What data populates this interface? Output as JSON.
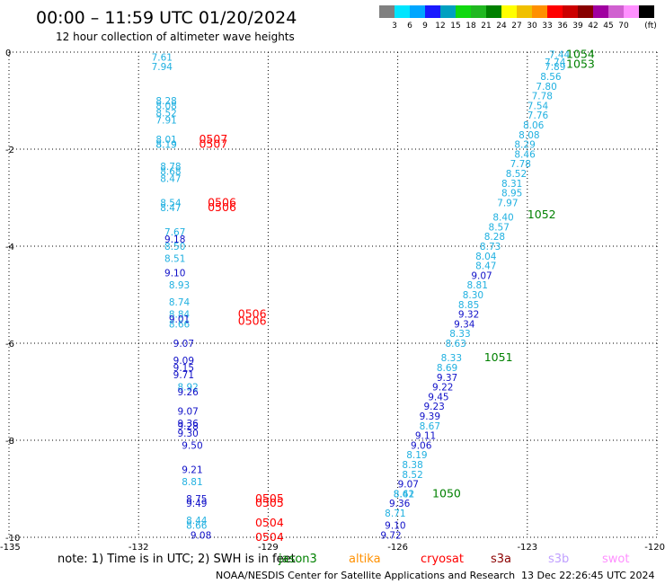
{
  "header": {
    "title": "00:00 – 11:59 UTC 01/20/2024",
    "subtitle": "12 hour collection of altimeter wave heights"
  },
  "color_scale": {
    "labels": [
      "3",
      "6",
      "9",
      "12",
      "15",
      "18",
      "21",
      "24",
      "27",
      "30",
      "33",
      "36",
      "39",
      "42",
      "45",
      "70"
    ],
    "unit": "(ft)",
    "colors": [
      "#808080",
      "#00e5ff",
      "#00a6ff",
      "#1a1aff",
      "#00a0c0",
      "#10d810",
      "#20b820",
      "#008000",
      "#ffff00",
      "#f0c000",
      "#ff9000",
      "#ff0000",
      "#cc0000",
      "#880000",
      "#a000a0",
      "#d060d0",
      "#ff90ff",
      "#000000"
    ]
  },
  "chart_data": {
    "type": "scatter",
    "xlim": [
      -135,
      -120
    ],
    "ylim": [
      -10,
      0
    ],
    "xticks": [
      "-135",
      "-132",
      "-129",
      "-126",
      "-123",
      "-120"
    ],
    "yticks": [
      "0",
      "-2",
      "-4",
      "-6",
      "-8",
      "-10"
    ],
    "grid": true,
    "points": [
      {
        "x": -131.7,
        "y": -0.1,
        "t": "7.61",
        "c": "light"
      },
      {
        "x": -131.7,
        "y": -0.3,
        "t": "7.94",
        "c": "light"
      },
      {
        "x": -131.6,
        "y": -1.0,
        "t": "8.28",
        "c": "light"
      },
      {
        "x": -131.6,
        "y": -1.1,
        "t": "8.08",
        "c": "light"
      },
      {
        "x": -131.6,
        "y": -1.25,
        "t": "8.52",
        "c": "light"
      },
      {
        "x": -131.6,
        "y": -1.4,
        "t": "7.91",
        "c": "light"
      },
      {
        "x": -131.6,
        "y": -1.8,
        "t": "8.01",
        "c": "light"
      },
      {
        "x": -131.6,
        "y": -1.9,
        "t": "8.19",
        "c": "light"
      },
      {
        "x": -131.6,
        "y": -1.9,
        "t": "8.19",
        "c": "light"
      },
      {
        "x": -131.5,
        "y": -2.35,
        "t": "8.78",
        "c": "light"
      },
      {
        "x": -131.5,
        "y": -2.45,
        "t": "8.68",
        "c": "light"
      },
      {
        "x": -131.5,
        "y": -2.6,
        "t": "8.47",
        "c": "light"
      },
      {
        "x": -131.5,
        "y": -3.1,
        "t": "8.54",
        "c": "light"
      },
      {
        "x": -131.5,
        "y": -3.2,
        "t": "8.47",
        "c": "light"
      },
      {
        "x": -131.4,
        "y": -3.7,
        "t": "7.67",
        "c": "light"
      },
      {
        "x": -131.4,
        "y": -3.85,
        "t": "9.18",
        "c": "dark"
      },
      {
        "x": -131.4,
        "y": -4.0,
        "t": "8.50",
        "c": "light"
      },
      {
        "x": -131.4,
        "y": -4.25,
        "t": "8.51",
        "c": "light"
      },
      {
        "x": -131.4,
        "y": -4.55,
        "t": "9.10",
        "c": "dark"
      },
      {
        "x": -131.3,
        "y": -4.8,
        "t": "8.93",
        "c": "light"
      },
      {
        "x": -131.3,
        "y": -5.15,
        "t": "8.74",
        "c": "light"
      },
      {
        "x": -131.3,
        "y": -5.4,
        "t": "8.84",
        "c": "light"
      },
      {
        "x": -131.3,
        "y": -5.5,
        "t": "9.01",
        "c": "dark"
      },
      {
        "x": -131.3,
        "y": -5.6,
        "t": "8.66",
        "c": "light"
      },
      {
        "x": -131.2,
        "y": -6.0,
        "t": "9.07",
        "c": "dark"
      },
      {
        "x": -131.2,
        "y": -6.35,
        "t": "9.09",
        "c": "dark"
      },
      {
        "x": -131.2,
        "y": -6.5,
        "t": "9.15",
        "c": "dark"
      },
      {
        "x": -131.2,
        "y": -6.65,
        "t": "9.71",
        "c": "dark"
      },
      {
        "x": -131.1,
        "y": -6.9,
        "t": "8.92",
        "c": "light"
      },
      {
        "x": -131.1,
        "y": -7.0,
        "t": "9.26",
        "c": "dark"
      },
      {
        "x": -131.1,
        "y": -7.4,
        "t": "9.07",
        "c": "dark"
      },
      {
        "x": -131.1,
        "y": -7.65,
        "t": "9.36",
        "c": "dark"
      },
      {
        "x": -131.1,
        "y": -7.7,
        "t": "9.28",
        "c": "dark"
      },
      {
        "x": -131.1,
        "y": -7.85,
        "t": "9.30",
        "c": "dark"
      },
      {
        "x": -131.0,
        "y": -8.1,
        "t": "9.50",
        "c": "dark"
      },
      {
        "x": -131.0,
        "y": -8.6,
        "t": "9.21",
        "c": "dark"
      },
      {
        "x": -131.0,
        "y": -8.85,
        "t": "8.81",
        "c": "light"
      },
      {
        "x": -130.9,
        "y": -9.2,
        "t": "8.75",
        "c": "dark"
      },
      {
        "x": -130.9,
        "y": -9.3,
        "t": "9.49",
        "c": "dark"
      },
      {
        "x": -130.9,
        "y": -9.65,
        "t": "8.44",
        "c": "light"
      },
      {
        "x": -130.9,
        "y": -9.75,
        "t": "8.66",
        "c": "light"
      },
      {
        "x": -130.8,
        "y": -9.95,
        "t": "9.08",
        "c": "dark"
      },
      {
        "x": -122.5,
        "y": -0.05,
        "t": "7.44",
        "c": "light"
      },
      {
        "x": -122.6,
        "y": -0.2,
        "t": "7.74",
        "c": "light"
      },
      {
        "x": -122.6,
        "y": -0.3,
        "t": "7.89",
        "c": "light"
      },
      {
        "x": -122.7,
        "y": -0.5,
        "t": "8.56",
        "c": "light"
      },
      {
        "x": -122.8,
        "y": -0.7,
        "t": "7.80",
        "c": "light"
      },
      {
        "x": -122.9,
        "y": -0.9,
        "t": "7.78",
        "c": "light"
      },
      {
        "x": -123.0,
        "y": -1.1,
        "t": "7.54",
        "c": "light"
      },
      {
        "x": -123.0,
        "y": -1.3,
        "t": "7.76",
        "c": "light"
      },
      {
        "x": -123.1,
        "y": -1.5,
        "t": "8.06",
        "c": "light"
      },
      {
        "x": -123.2,
        "y": -1.7,
        "t": "8.08",
        "c": "light"
      },
      {
        "x": -123.3,
        "y": -1.9,
        "t": "8.29",
        "c": "light"
      },
      {
        "x": -123.3,
        "y": -2.1,
        "t": "8.46",
        "c": "light"
      },
      {
        "x": -123.4,
        "y": -2.3,
        "t": "7.78",
        "c": "light"
      },
      {
        "x": -123.5,
        "y": -2.5,
        "t": "8.52",
        "c": "light"
      },
      {
        "x": -123.6,
        "y": -2.7,
        "t": "8.31",
        "c": "light"
      },
      {
        "x": -123.6,
        "y": -2.9,
        "t": "8.95",
        "c": "light"
      },
      {
        "x": -123.7,
        "y": -3.1,
        "t": "7.97",
        "c": "light"
      },
      {
        "x": -123.8,
        "y": -3.4,
        "t": "8.40",
        "c": "light"
      },
      {
        "x": -123.9,
        "y": -3.6,
        "t": "8.57",
        "c": "light"
      },
      {
        "x": -124.0,
        "y": -3.8,
        "t": "8.28",
        "c": "light"
      },
      {
        "x": -124.1,
        "y": -4.0,
        "t": "8.73",
        "c": "light"
      },
      {
        "x": -124.2,
        "y": -4.2,
        "t": "8.04",
        "c": "light"
      },
      {
        "x": -124.2,
        "y": -4.4,
        "t": "8.47",
        "c": "light"
      },
      {
        "x": -124.3,
        "y": -4.6,
        "t": "9.07",
        "c": "dark"
      },
      {
        "x": -124.4,
        "y": -4.8,
        "t": "8.81",
        "c": "light"
      },
      {
        "x": -124.5,
        "y": -5.0,
        "t": "8.30",
        "c": "light"
      },
      {
        "x": -124.6,
        "y": -5.2,
        "t": "8.85",
        "c": "light"
      },
      {
        "x": -124.6,
        "y": -5.4,
        "t": "9.32",
        "c": "dark"
      },
      {
        "x": -124.7,
        "y": -5.6,
        "t": "9.34",
        "c": "dark"
      },
      {
        "x": -124.8,
        "y": -5.8,
        "t": "8.33",
        "c": "light"
      },
      {
        "x": -124.9,
        "y": -6.0,
        "t": "8.63",
        "c": "light"
      },
      {
        "x": -125.0,
        "y": -6.3,
        "t": "8.33",
        "c": "light"
      },
      {
        "x": -125.1,
        "y": -6.5,
        "t": "8.69",
        "c": "light"
      },
      {
        "x": -125.1,
        "y": -6.7,
        "t": "9.37",
        "c": "dark"
      },
      {
        "x": -125.2,
        "y": -6.9,
        "t": "9.22",
        "c": "dark"
      },
      {
        "x": -125.3,
        "y": -7.1,
        "t": "9.45",
        "c": "dark"
      },
      {
        "x": -125.4,
        "y": -7.3,
        "t": "9.23",
        "c": "dark"
      },
      {
        "x": -125.5,
        "y": -7.5,
        "t": "9.39",
        "c": "dark"
      },
      {
        "x": -125.5,
        "y": -7.7,
        "t": "8.67",
        "c": "light"
      },
      {
        "x": -125.6,
        "y": -7.9,
        "t": "9.11",
        "c": "dark"
      },
      {
        "x": -125.7,
        "y": -8.1,
        "t": "9.06",
        "c": "dark"
      },
      {
        "x": -125.8,
        "y": -8.3,
        "t": "8.19",
        "c": "light"
      },
      {
        "x": -125.9,
        "y": -8.5,
        "t": "8.38",
        "c": "light"
      },
      {
        "x": -125.9,
        "y": -8.7,
        "t": "8.52",
        "c": "light"
      },
      {
        "x": -126.0,
        "y": -8.9,
        "t": "9.07",
        "c": "dark"
      },
      {
        "x": -126.1,
        "y": -9.1,
        "t": "8.62",
        "c": "light"
      },
      {
        "x": -126.1,
        "y": -9.1,
        "t": "8.41",
        "c": "light"
      },
      {
        "x": -126.2,
        "y": -9.3,
        "t": "9.36",
        "c": "dark"
      },
      {
        "x": -126.3,
        "y": -9.5,
        "t": "8.71",
        "c": "light"
      },
      {
        "x": -126.3,
        "y": -9.75,
        "t": "9.10",
        "c": "dark"
      },
      {
        "x": -126.4,
        "y": -9.95,
        "t": "9.72",
        "c": "dark"
      }
    ],
    "passes": [
      {
        "x": -130.6,
        "y": -1.8,
        "t": "0507",
        "c": "red"
      },
      {
        "x": -130.6,
        "y": -1.9,
        "t": "0507",
        "c": "red"
      },
      {
        "x": -130.4,
        "y": -3.1,
        "t": "0506",
        "c": "red"
      },
      {
        "x": -130.4,
        "y": -3.2,
        "t": "0506",
        "c": "red"
      },
      {
        "x": -129.7,
        "y": -5.4,
        "t": "0506",
        "c": "red"
      },
      {
        "x": -129.7,
        "y": -5.55,
        "t": "0506",
        "c": "red"
      },
      {
        "x": -129.3,
        "y": -9.2,
        "t": "0505",
        "c": "red"
      },
      {
        "x": -129.3,
        "y": -9.3,
        "t": "0505",
        "c": "red"
      },
      {
        "x": -129.3,
        "y": -9.7,
        "t": "0504",
        "c": "red"
      },
      {
        "x": -129.3,
        "y": -10.0,
        "t": "0504",
        "c": "red"
      },
      {
        "x": -122.1,
        "y": -0.05,
        "t": "1054",
        "c": "green"
      },
      {
        "x": -122.1,
        "y": -0.25,
        "t": "1053",
        "c": "green"
      },
      {
        "x": -123.0,
        "y": -3.35,
        "t": "1052",
        "c": "green"
      },
      {
        "x": -124.0,
        "y": -6.3,
        "t": "1051",
        "c": "green"
      },
      {
        "x": -125.2,
        "y": -9.1,
        "t": "1050",
        "c": "green"
      }
    ]
  },
  "footer": {
    "note": "note:  1) Time is in UTC; 2) SWH is in feet",
    "satellites": [
      {
        "name": "jason3",
        "color": "#008000"
      },
      {
        "name": "altika",
        "color": "#ff9000"
      },
      {
        "name": "cryosat",
        "color": "#ff0000"
      },
      {
        "name": "s3a",
        "color": "#8b0000"
      },
      {
        "name": "s3b",
        "color": "#c0a0ff"
      },
      {
        "name": "swot",
        "color": "#ff90ff"
      }
    ],
    "credit": "NOAA/NESDIS Center for Satellite Applications and Research",
    "timestamp": "13 Dec 22:26:45 UTC 2024"
  },
  "colors": {
    "light": "#20b0e0",
    "dark": "#1010c8",
    "red": "#ff0000",
    "green": "#008000"
  }
}
